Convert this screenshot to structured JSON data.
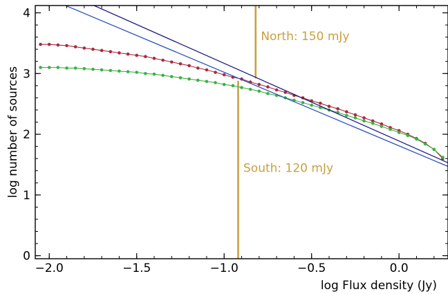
{
  "chart_data": {
    "type": "scatter",
    "xlabel": "log Flux density (Jy)",
    "ylabel": "log number of sources",
    "xlim": [
      -2.08,
      0.28
    ],
    "ylim": [
      -0.05,
      4.12
    ],
    "x_ticks": [
      -2.0,
      -1.5,
      -1.0,
      -0.5,
      0.0
    ],
    "x_tick_labels": [
      "−2.0",
      "−1.5",
      "−1.0",
      "−0.5",
      "0.0"
    ],
    "y_ticks": [
      0,
      1,
      2,
      3,
      4
    ],
    "y_tick_labels": [
      "0",
      "1",
      "2",
      "3",
      "4"
    ],
    "grid": false,
    "series": [
      {
        "color": "#aa2a3c",
        "kind": "points+curve",
        "x": [
          -2.05,
          -2.0,
          -1.95,
          -1.9,
          -1.85,
          -1.8,
          -1.75,
          -1.7,
          -1.65,
          -1.6,
          -1.55,
          -1.5,
          -1.45,
          -1.4,
          -1.35,
          -1.3,
          -1.25,
          -1.2,
          -1.15,
          -1.1,
          -1.05,
          -1.0,
          -0.95,
          -0.9,
          -0.85,
          -0.8,
          -0.75,
          -0.7,
          -0.65,
          -0.6,
          -0.55,
          -0.5,
          -0.45,
          -0.4,
          -0.35,
          -0.3,
          -0.25,
          -0.2,
          -0.15,
          -0.1,
          -0.05,
          0.0,
          0.05,
          0.1,
          0.15,
          0.2,
          0.25
        ],
        "y": [
          3.48,
          3.48,
          3.47,
          3.46,
          3.44,
          3.42,
          3.4,
          3.38,
          3.36,
          3.34,
          3.32,
          3.3,
          3.28,
          3.25,
          3.22,
          3.19,
          3.16,
          3.13,
          3.09,
          3.06,
          3.02,
          2.98,
          2.94,
          2.91,
          2.86,
          2.82,
          2.78,
          2.73,
          2.69,
          2.64,
          2.6,
          2.55,
          2.51,
          2.46,
          2.42,
          2.37,
          2.32,
          2.27,
          2.22,
          2.17,
          2.11,
          2.06,
          2.0,
          1.93,
          1.85,
          1.75,
          1.6
        ]
      },
      {
        "color": "#3cb043",
        "kind": "points+curve",
        "x": [
          -2.05,
          -2.0,
          -1.95,
          -1.9,
          -1.85,
          -1.8,
          -1.75,
          -1.7,
          -1.65,
          -1.6,
          -1.55,
          -1.5,
          -1.45,
          -1.4,
          -1.35,
          -1.3,
          -1.25,
          -1.2,
          -1.15,
          -1.1,
          -1.05,
          -1.0,
          -0.95,
          -0.9,
          -0.85,
          -0.8,
          -0.75,
          -0.7,
          -0.65,
          -0.6,
          -0.55,
          -0.5,
          -0.45,
          -0.4,
          -0.35,
          -0.3,
          -0.25,
          -0.2,
          -0.15,
          -0.1,
          -0.05,
          0.0,
          0.05,
          0.1,
          0.15,
          0.2,
          0.25
        ],
        "y": [
          3.1,
          3.1,
          3.1,
          3.09,
          3.09,
          3.08,
          3.07,
          3.06,
          3.05,
          3.04,
          3.03,
          3.02,
          3.0,
          2.99,
          2.97,
          2.95,
          2.93,
          2.91,
          2.89,
          2.87,
          2.85,
          2.82,
          2.8,
          2.77,
          2.74,
          2.71,
          2.67,
          2.64,
          2.6,
          2.56,
          2.52,
          2.48,
          2.44,
          2.4,
          2.36,
          2.31,
          2.27,
          2.22,
          2.18,
          2.13,
          2.08,
          2.03,
          1.98,
          1.92,
          1.84,
          1.75,
          1.62
        ]
      },
      {
        "color": "#1a1a80",
        "kind": "line",
        "x": [
          -2.08,
          0.28
        ],
        "y": [
          4.55,
          1.53
        ]
      },
      {
        "color": "#2a52be",
        "kind": "line",
        "x": [
          -2.08,
          0.28
        ],
        "y": [
          4.33,
          1.47
        ]
      }
    ],
    "vlines": [
      {
        "x": -0.82,
        "y_from": 2.92,
        "y_to": 4.12,
        "color": "#c8a040",
        "label": "North: 150 mJy",
        "label_x": -0.79,
        "label_y": 3.55
      },
      {
        "x": -0.92,
        "y_from": -0.05,
        "y_to": 2.88,
        "color": "#c8a040",
        "label": "South: 120 mJy",
        "label_x": -0.89,
        "label_y": 1.38
      }
    ]
  }
}
